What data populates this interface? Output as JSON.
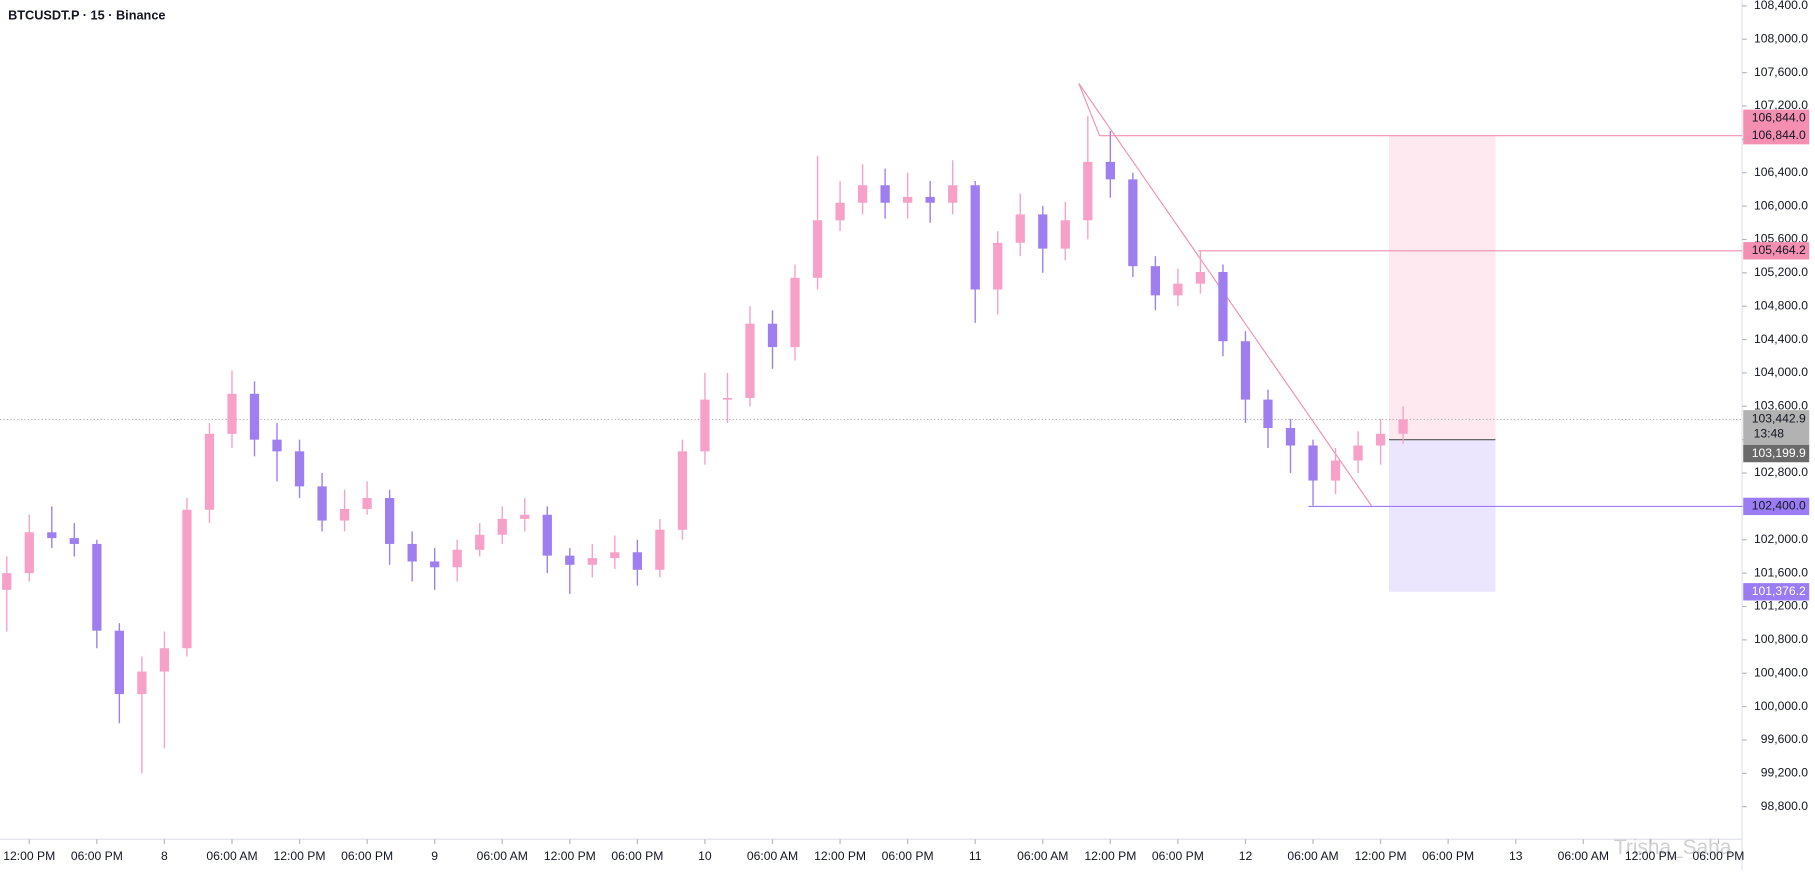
{
  "chart_data": {
    "type": "candlestick",
    "title": "BTCUSDT.P · 15 · Binance",
    "watermark": "Trisha_Saha",
    "up_color": "#f7a1c8",
    "down_color": "#9f7ef0",
    "x": [
      10,
      12,
      14,
      16,
      18,
      20,
      22,
      24,
      26,
      28,
      30,
      32,
      34,
      36,
      38,
      40,
      42,
      44,
      46,
      48,
      50,
      52,
      54,
      56,
      58,
      60,
      62,
      64,
      66,
      68,
      70,
      72,
      74,
      76,
      78,
      80,
      82,
      84,
      86,
      88,
      90,
      92,
      94,
      96,
      98,
      100,
      102,
      104,
      106,
      108,
      110,
      112,
      114,
      116,
      118,
      120,
      122,
      124,
      126,
      128,
      130,
      132,
      134
    ],
    "open": [
      101400,
      101600,
      102090,
      102020,
      101950,
      100910,
      100150,
      100420,
      100700,
      102360,
      103270,
      103750,
      103200,
      103060,
      102640,
      102230,
      102370,
      102500,
      101950,
      101740,
      101670,
      101880,
      102060,
      102250,
      102300,
      101810,
      101700,
      101780,
      101850,
      101640,
      102120,
      103060,
      103680,
      103700,
      104590,
      104310,
      105140,
      105830,
      106040,
      106250,
      106040,
      106110,
      106040,
      106250,
      105000,
      105560,
      105900,
      105490,
      105830,
      106530,
      106320,
      105280,
      104930,
      105070,
      105210,
      104380,
      103680,
      103340,
      103130,
      102710,
      102950,
      103130,
      103270
    ],
    "high": [
      101800,
      102300,
      102400,
      102200,
      102000,
      101000,
      100600,
      100900,
      102500,
      103400,
      104030,
      103900,
      103400,
      103200,
      102800,
      102600,
      102700,
      102600,
      102100,
      101900,
      102000,
      102200,
      102400,
      102500,
      102400,
      101900,
      101950,
      102050,
      102000,
      102250,
      103200,
      104000,
      104000,
      104800,
      104750,
      105300,
      106600,
      106300,
      106500,
      106450,
      106400,
      106300,
      106550,
      106300,
      105700,
      106150,
      106000,
      106050,
      107080,
      106900,
      106400,
      105400,
      105250,
      105460,
      105300,
      104500,
      103800,
      103450,
      103200,
      103100,
      103300,
      103450,
      103600
    ],
    "low": [
      100900,
      101500,
      101900,
      101800,
      100700,
      99800,
      99200,
      99500,
      100600,
      102200,
      103100,
      103000,
      102700,
      102500,
      102100,
      102100,
      102300,
      101700,
      101500,
      101400,
      101500,
      101800,
      101950,
      102100,
      101600,
      101350,
      101550,
      101650,
      101450,
      101550,
      102000,
      102900,
      103400,
      103600,
      104050,
      104150,
      105000,
      105700,
      105900,
      105850,
      105850,
      105800,
      105900,
      104600,
      104700,
      105400,
      105200,
      105350,
      105600,
      106100,
      105150,
      104750,
      104800,
      104950,
      104200,
      103400,
      103100,
      102800,
      102410,
      102550,
      102800,
      102900,
      103150
    ],
    "close": [
      101600,
      102090,
      102020,
      101950,
      100910,
      100150,
      100420,
      100700,
      102360,
      103270,
      103750,
      103200,
      103060,
      102640,
      102230,
      102370,
      102500,
      101950,
      101740,
      101670,
      101880,
      102060,
      102250,
      102300,
      101810,
      101700,
      101780,
      101850,
      101640,
      102120,
      103060,
      103680,
      103700,
      104590,
      104310,
      105140,
      105830,
      106040,
      106250,
      106040,
      106110,
      106040,
      106250,
      105000,
      105560,
      105900,
      105490,
      105830,
      106530,
      106320,
      105280,
      104930,
      105070,
      105210,
      104380,
      103680,
      103340,
      103130,
      102710,
      102950,
      103130,
      103270,
      103442.9
    ],
    "xlim": [
      9.4,
      164.1
    ],
    "ylim": [
      98410,
      108470
    ],
    "xticks": [
      {
        "value": 12,
        "label": "12:00 PM"
      },
      {
        "value": 18,
        "label": "06:00 PM"
      },
      {
        "value": 24,
        "label": "8"
      },
      {
        "value": 30,
        "label": "06:00 AM"
      },
      {
        "value": 36,
        "label": "12:00 PM"
      },
      {
        "value": 42,
        "label": "06:00 PM"
      },
      {
        "value": 48,
        "label": "9"
      },
      {
        "value": 54,
        "label": "06:00 AM"
      },
      {
        "value": 60,
        "label": "12:00 PM"
      },
      {
        "value": 66,
        "label": "06:00 PM"
      },
      {
        "value": 72,
        "label": "10"
      },
      {
        "value": 78,
        "label": "06:00 AM"
      },
      {
        "value": 84,
        "label": "12:00 PM"
      },
      {
        "value": 90,
        "label": "06:00 PM"
      },
      {
        "value": 96,
        "label": "11"
      },
      {
        "value": 102,
        "label": "06:00 AM"
      },
      {
        "value": 108,
        "label": "12:00 PM"
      },
      {
        "value": 114,
        "label": "06:00 PM"
      },
      {
        "value": 120,
        "label": "12"
      },
      {
        "value": 126,
        "label": "06:00 AM"
      },
      {
        "value": 132,
        "label": "12:00 PM"
      },
      {
        "value": 138,
        "label": "06:00 PM"
      },
      {
        "value": 144,
        "label": "13"
      },
      {
        "value": 150,
        "label": "06:00 AM"
      },
      {
        "value": 156,
        "label": "12:00 PM"
      },
      {
        "value": 162,
        "label": "06:00 PM"
      }
    ],
    "yticks": [
      {
        "value": 98800,
        "label": "98,800.0"
      },
      {
        "value": 99200,
        "label": "99,200.0"
      },
      {
        "value": 99600,
        "label": "99,600.0"
      },
      {
        "value": 100000,
        "label": "100,000.0"
      },
      {
        "value": 100400,
        "label": "100,400.0"
      },
      {
        "value": 100800,
        "label": "100,800.0"
      },
      {
        "value": 101200,
        "label": "101,200.0"
      },
      {
        "value": 101600,
        "label": "101,600.0"
      },
      {
        "value": 102000,
        "label": "102,000.0"
      },
      {
        "value": 102400,
        "label": "102,400.0"
      },
      {
        "value": 102800,
        "label": "102,800.0"
      },
      {
        "value": 103200,
        "label": "103,200.0"
      },
      {
        "value": 103600,
        "label": "103,600.0"
      },
      {
        "value": 104000,
        "label": "104,000.0"
      },
      {
        "value": 104400,
        "label": "104,400.0"
      },
      {
        "value": 104800,
        "label": "104,800.0"
      },
      {
        "value": 105200,
        "label": "105,200.0"
      },
      {
        "value": 105600,
        "label": "105,600.0"
      },
      {
        "value": 106000,
        "label": "106,000.0"
      },
      {
        "value": 106400,
        "label": "106,400.0"
      },
      {
        "value": 106800,
        "label": "106,800.0"
      },
      {
        "value": 107200,
        "label": "107,200.0"
      },
      {
        "value": 107600,
        "label": "107,600.0"
      },
      {
        "value": 108000,
        "label": "108,000.0"
      },
      {
        "value": 108400,
        "label": "108,400.0"
      }
    ],
    "levels": [
      {
        "value": 106844.0,
        "label": "106,844.0",
        "start": 107.05,
        "color": "#f48fb1"
      },
      {
        "value": 105464.2,
        "label": "105,464.2",
        "start": 115.8,
        "color": "#f48fb1"
      },
      {
        "value": 102400.0,
        "label": "102,400.0",
        "start": 125.6,
        "color": "#9c7cf4"
      }
    ],
    "trend_lines": [
      {
        "x": [
          105.2,
          131.2
        ],
        "y": [
          107470,
          102406
        ],
        "color": "#f48fb1"
      },
      {
        "x": [
          105.2,
          107.05
        ],
        "y": [
          107470,
          106844
        ],
        "color": "#f48fb1"
      }
    ],
    "position": {
      "x_start": 132.75,
      "x_end": 142.2,
      "entry": {
        "value": 103199.9,
        "label": "103,199.9"
      },
      "stop": {
        "value": 106844.0,
        "label": "106,844.0"
      },
      "target": {
        "value": 101376.2,
        "label": "101,376.2"
      },
      "stop_color": "#f48fb1",
      "target_color": "#9c7cf4"
    },
    "last_price": {
      "value": 103442.9,
      "label": "103,442.9",
      "countdown": "13:48"
    }
  }
}
